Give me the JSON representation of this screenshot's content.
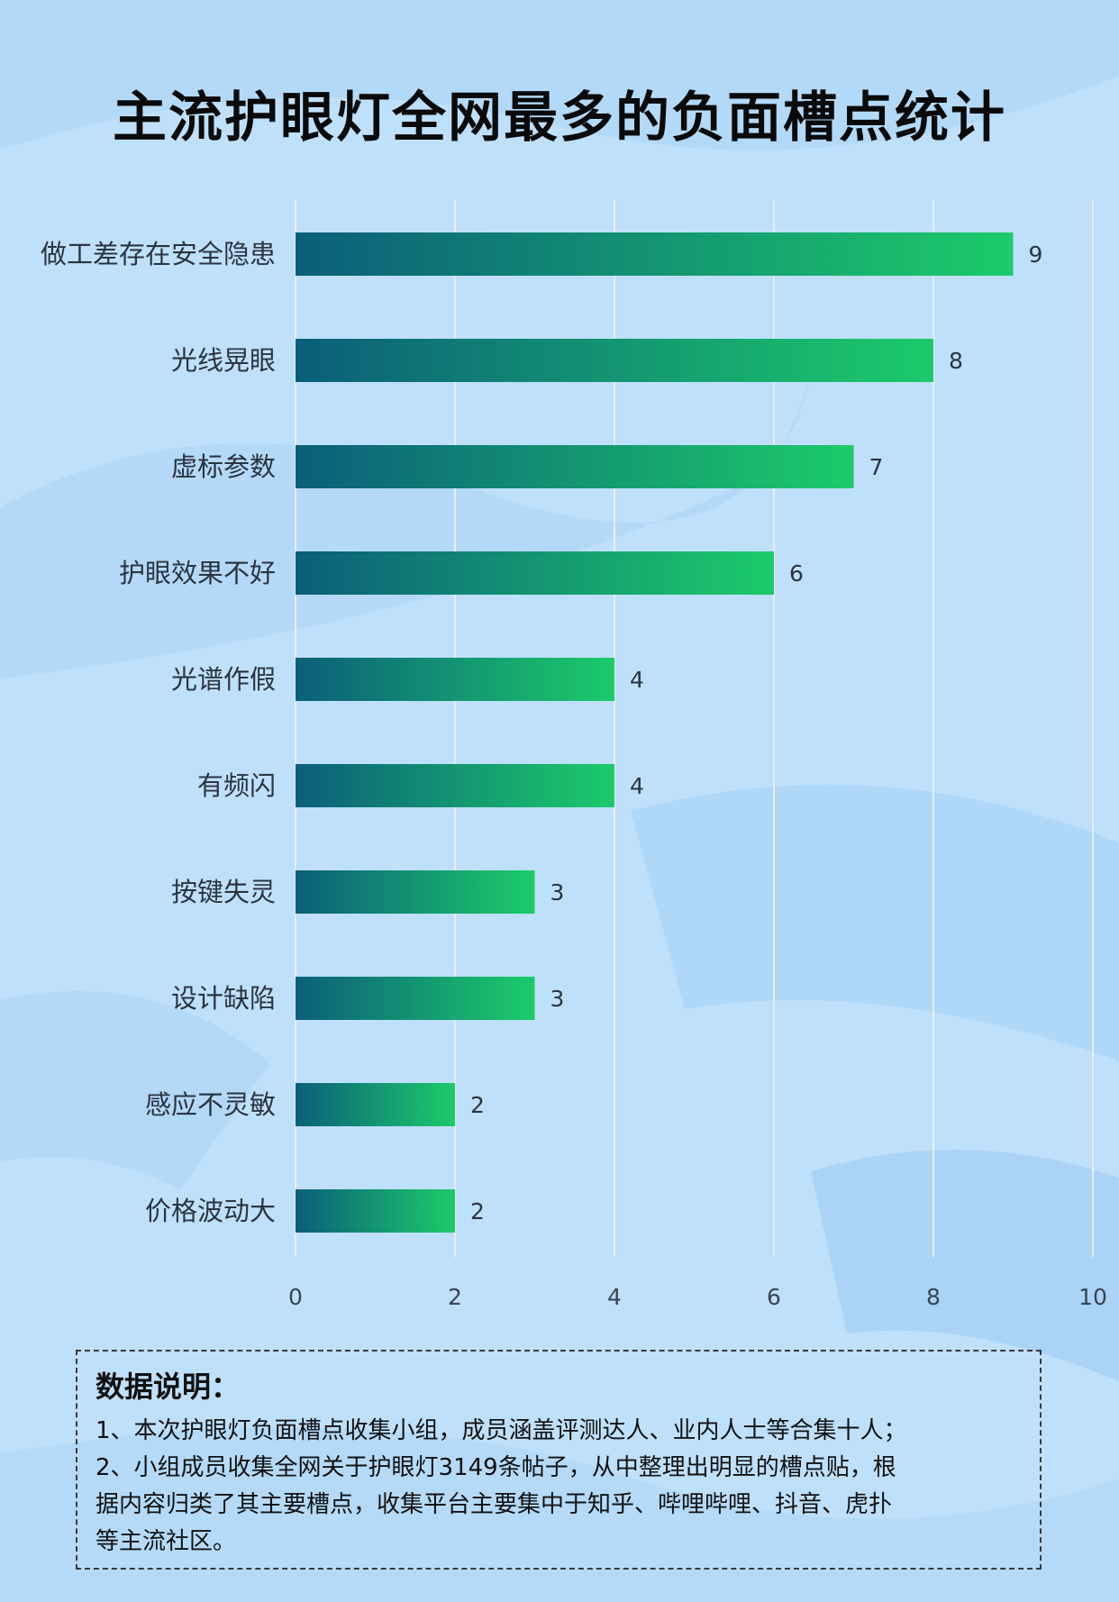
{
  "title": "主流护眼灯全网最多的负面槽点统计",
  "colors": {
    "background": "#bfe0fb",
    "bar_start": "#0b5e7a",
    "bar_end": "#1ccb6a",
    "gridline": "#e9eef2"
  },
  "chart_data": {
    "type": "bar",
    "orientation": "horizontal",
    "categories": [
      "做工差存在安全隐患",
      "光线晃眼",
      "虚标参数",
      "护眼效果不好",
      "光谱作假",
      "有频闪",
      "按键失灵",
      "设计缺陷",
      "感应不灵敏",
      "价格波动大"
    ],
    "values": [
      9,
      8,
      7,
      6,
      4,
      4,
      3,
      3,
      2,
      2
    ],
    "xlim": [
      0,
      10
    ],
    "xticks": [
      0,
      2,
      4,
      6,
      8,
      10
    ],
    "grid": true,
    "title": "",
    "xlabel": "",
    "ylabel": ""
  },
  "notes": {
    "title": "数据说明：",
    "lines": [
      "1、本次护眼灯负面槽点收集小组，成员涵盖评测达人、业内人士等合集十人；",
      "2、小组成员收集全网关于护眼灯3149条帖子，从中整理出明显的槽点贴，根",
      "据内容归类了其主要槽点，收集平台主要集中于知乎、哔哩哔哩、抖音、虎扑",
      "等主流社区。"
    ]
  }
}
